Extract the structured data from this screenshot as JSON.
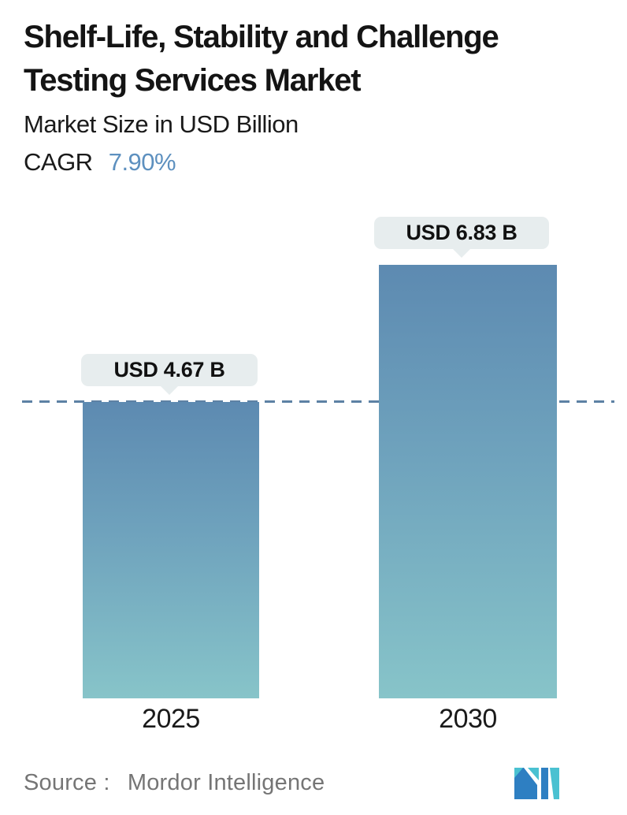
{
  "header": {
    "title_lines": [
      "Shelf-Life, Stability and Challenge",
      "Testing Services Market"
    ],
    "subtitle": "Market Size in USD Billion",
    "cagr_label": "CAGR",
    "cagr_value": "7.90%"
  },
  "chart_data": {
    "type": "bar",
    "title": "Shelf-Life, Stability and Challenge Testing Services Market",
    "subtitle": "Market Size in USD Billion",
    "cagr": "7.90%",
    "categories": [
      "2025",
      "2030"
    ],
    "values": [
      4.67,
      6.83
    ],
    "value_labels": [
      "USD 4.67 B",
      "USD 6.83 B"
    ],
    "unit": "USD Billion",
    "ylim": [
      0,
      6.83
    ],
    "baseline": {
      "at_value": 4.67,
      "style": "dashed",
      "color": "#5d81a4"
    },
    "grid": false,
    "legend": "none",
    "bar_gradient_top": "#5d8ab1",
    "bar_gradient_bottom": "#87c4c9",
    "value_label_bg": "#e7edee"
  },
  "footer": {
    "source_label": "Source :",
    "source_value": "Mordor Intelligence",
    "logo_name": "mordor-intelligence-logo",
    "logo_colors": {
      "blue": "#2e7fc2",
      "teal": "#4ac1d1"
    }
  },
  "colors": {
    "accent_blue": "#5d90bf",
    "text": "#141414",
    "muted_text": "#757575",
    "background": "#ffffff"
  }
}
